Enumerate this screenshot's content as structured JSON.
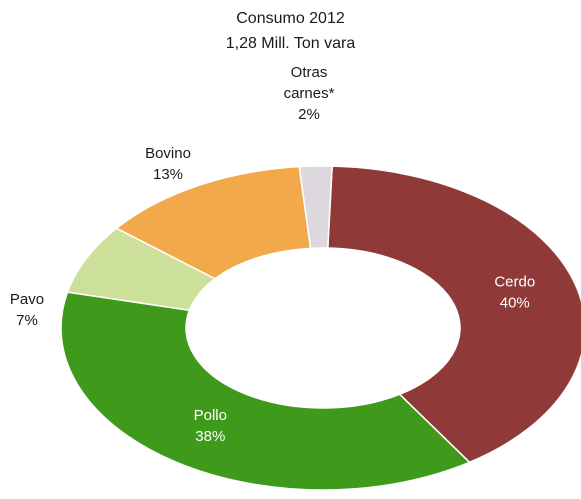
{
  "chart_data": {
    "type": "pie",
    "variant": "donut",
    "title": "Consumo 2012",
    "subtitle": "1,28 Mill. Ton vara",
    "slices": [
      {
        "label": [
          "Cerdo"
        ],
        "value": 40,
        "value_label": "40%",
        "color": "#8f3a39",
        "label_color": "#ffffff",
        "label_position": "inside"
      },
      {
        "label": [
          "Pollo"
        ],
        "value": 38,
        "value_label": "38%",
        "color": "#3f9a1c",
        "label_color": "#ffffff",
        "label_position": "inside"
      },
      {
        "label": [
          "Pavo"
        ],
        "value": 7,
        "value_label": "7%",
        "color": "#cde09a",
        "label_color": "#1a1a1a",
        "label_position": "outside"
      },
      {
        "label": [
          "Bovino"
        ],
        "value": 13,
        "value_label": "13%",
        "color": "#f2a94c",
        "label_color": "#1a1a1a",
        "label_position": "outside"
      },
      {
        "label": [
          "Otras",
          "carnes*"
        ],
        "value": 2,
        "value_label": "2%",
        "color": "#dcd8dd",
        "label_color": "#1a1a1a",
        "label_position": "outside"
      }
    ],
    "legend": "none"
  }
}
